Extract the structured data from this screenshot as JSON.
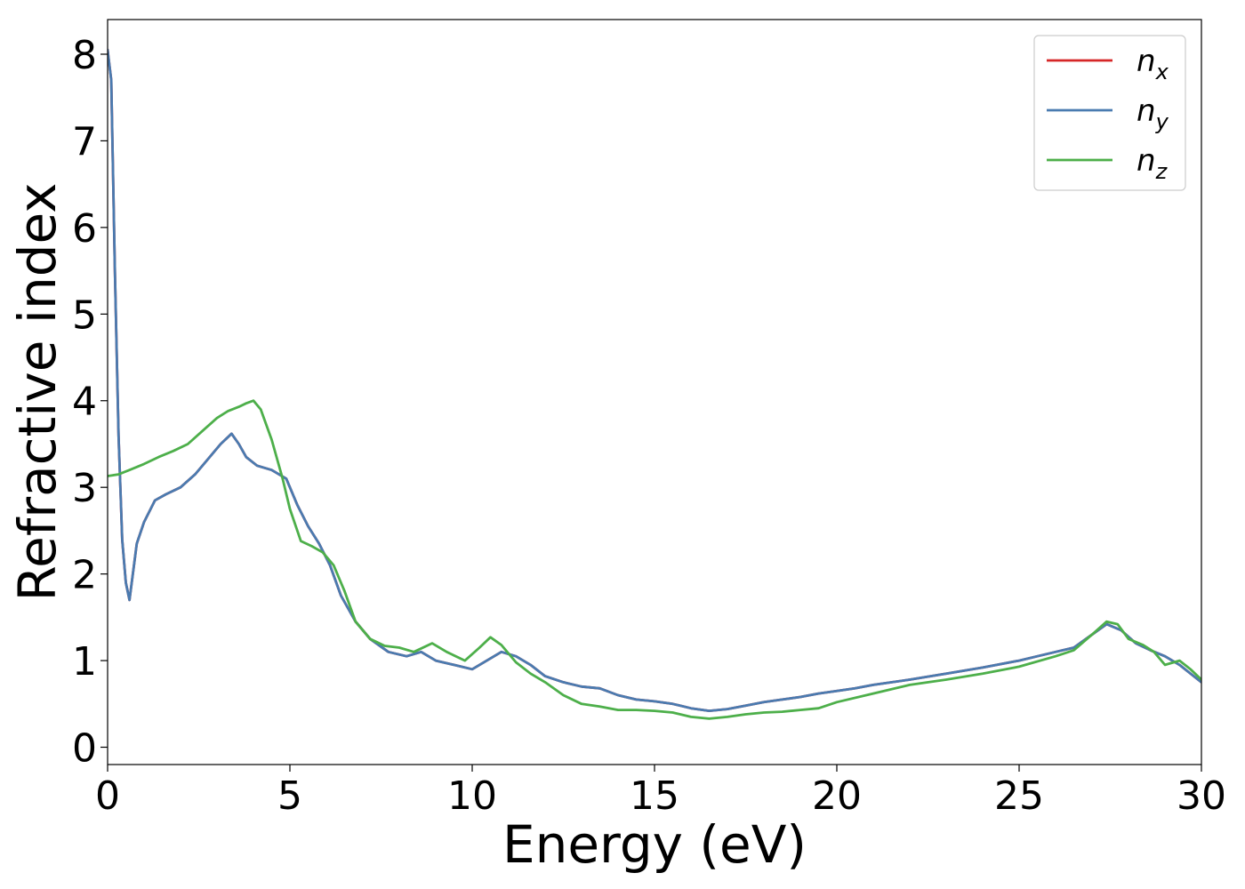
{
  "chart_data": {
    "type": "line",
    "title": "",
    "xlabel": "Energy (eV)",
    "ylabel": "Refractive index",
    "xlim": [
      0,
      30
    ],
    "ylim": [
      -0.2,
      8.4
    ],
    "xticks": [
      0,
      5,
      10,
      15,
      20,
      25,
      30
    ],
    "yticks": [
      0,
      1,
      2,
      3,
      4,
      5,
      6,
      7,
      8
    ],
    "grid": false,
    "legend_position": "top-right",
    "series": [
      {
        "name": "n_x",
        "label_main": "n",
        "label_sub": "x",
        "color": "#d62728",
        "x": [
          0,
          0.1,
          0.2,
          0.3,
          0.4,
          0.5,
          0.6,
          0.8,
          1.0,
          1.3,
          1.6,
          2.0,
          2.4,
          2.8,
          3.1,
          3.4,
          3.6,
          3.8,
          4.1,
          4.5,
          4.9,
          5.2,
          5.5,
          5.8,
          6.1,
          6.4,
          6.8,
          7.2,
          7.7,
          8.2,
          8.6,
          9.0,
          9.5,
          10.0,
          10.4,
          10.8,
          11.2,
          11.6,
          12.0,
          12.5,
          13.0,
          13.5,
          14.0,
          14.5,
          15.0,
          15.5,
          16.0,
          16.5,
          17.0,
          17.5,
          18.0,
          18.5,
          19.0,
          19.5,
          20.0,
          20.5,
          21.0,
          22.0,
          23.0,
          24.0,
          25.0,
          25.5,
          26.0,
          26.5,
          27.0,
          27.4,
          27.8,
          28.2,
          28.6,
          29.0,
          29.4,
          29.7,
          30.0
        ],
        "y": [
          8.05,
          7.7,
          5.5,
          3.6,
          2.4,
          1.9,
          1.7,
          2.35,
          2.6,
          2.85,
          2.92,
          3.0,
          3.15,
          3.35,
          3.5,
          3.62,
          3.5,
          3.35,
          3.25,
          3.2,
          3.1,
          2.8,
          2.55,
          2.35,
          2.1,
          1.75,
          1.45,
          1.25,
          1.1,
          1.05,
          1.1,
          1.0,
          0.95,
          0.9,
          1.0,
          1.1,
          1.05,
          0.95,
          0.82,
          0.75,
          0.7,
          0.68,
          0.6,
          0.55,
          0.53,
          0.5,
          0.45,
          0.42,
          0.44,
          0.48,
          0.52,
          0.55,
          0.58,
          0.62,
          0.65,
          0.68,
          0.72,
          0.78,
          0.85,
          0.92,
          1.0,
          1.05,
          1.1,
          1.15,
          1.3,
          1.42,
          1.35,
          1.2,
          1.12,
          1.05,
          0.95,
          0.85,
          0.75
        ]
      },
      {
        "name": "n_y",
        "label_main": "n",
        "label_sub": "y",
        "color": "#4a7bb0",
        "x": [
          0,
          0.1,
          0.2,
          0.3,
          0.4,
          0.5,
          0.6,
          0.8,
          1.0,
          1.3,
          1.6,
          2.0,
          2.4,
          2.8,
          3.1,
          3.4,
          3.6,
          3.8,
          4.1,
          4.5,
          4.9,
          5.2,
          5.5,
          5.8,
          6.1,
          6.4,
          6.8,
          7.2,
          7.7,
          8.2,
          8.6,
          9.0,
          9.5,
          10.0,
          10.4,
          10.8,
          11.2,
          11.6,
          12.0,
          12.5,
          13.0,
          13.5,
          14.0,
          14.5,
          15.0,
          15.5,
          16.0,
          16.5,
          17.0,
          17.5,
          18.0,
          18.5,
          19.0,
          19.5,
          20.0,
          20.5,
          21.0,
          22.0,
          23.0,
          24.0,
          25.0,
          25.5,
          26.0,
          26.5,
          27.0,
          27.4,
          27.8,
          28.2,
          28.6,
          29.0,
          29.4,
          29.7,
          30.0
        ],
        "y": [
          8.05,
          7.7,
          5.5,
          3.6,
          2.4,
          1.9,
          1.7,
          2.35,
          2.6,
          2.85,
          2.92,
          3.0,
          3.15,
          3.35,
          3.5,
          3.62,
          3.5,
          3.35,
          3.25,
          3.2,
          3.1,
          2.8,
          2.55,
          2.35,
          2.1,
          1.75,
          1.45,
          1.25,
          1.1,
          1.05,
          1.1,
          1.0,
          0.95,
          0.9,
          1.0,
          1.1,
          1.05,
          0.95,
          0.82,
          0.75,
          0.7,
          0.68,
          0.6,
          0.55,
          0.53,
          0.5,
          0.45,
          0.42,
          0.44,
          0.48,
          0.52,
          0.55,
          0.58,
          0.62,
          0.65,
          0.68,
          0.72,
          0.78,
          0.85,
          0.92,
          1.0,
          1.05,
          1.1,
          1.15,
          1.3,
          1.42,
          1.35,
          1.2,
          1.12,
          1.05,
          0.95,
          0.85,
          0.75
        ]
      },
      {
        "name": "n_z",
        "label_main": "n",
        "label_sub": "z",
        "color": "#4daf4a",
        "x": [
          0,
          0.3,
          0.6,
          1.0,
          1.4,
          1.8,
          2.2,
          2.6,
          3.0,
          3.3,
          3.6,
          3.8,
          4.0,
          4.2,
          4.5,
          4.8,
          5.0,
          5.3,
          5.6,
          5.9,
          6.2,
          6.5,
          6.8,
          7.2,
          7.6,
          8.0,
          8.4,
          8.9,
          9.3,
          9.8,
          10.2,
          10.5,
          10.8,
          11.2,
          11.6,
          12.0,
          12.5,
          13.0,
          13.5,
          14.0,
          14.5,
          15.0,
          15.5,
          16.0,
          16.5,
          17.0,
          17.5,
          18.0,
          18.5,
          19.0,
          19.5,
          20.0,
          21.0,
          22.0,
          23.0,
          24.0,
          25.0,
          26.0,
          26.5,
          27.0,
          27.4,
          27.7,
          28.0,
          28.4,
          28.7,
          29.0,
          29.4,
          29.7,
          30.0
        ],
        "y": [
          3.13,
          3.15,
          3.2,
          3.27,
          3.35,
          3.42,
          3.5,
          3.65,
          3.8,
          3.88,
          3.93,
          3.97,
          4.0,
          3.9,
          3.55,
          3.1,
          2.75,
          2.38,
          2.32,
          2.25,
          2.1,
          1.8,
          1.45,
          1.25,
          1.17,
          1.15,
          1.1,
          1.2,
          1.1,
          1.0,
          1.15,
          1.27,
          1.18,
          0.98,
          0.85,
          0.75,
          0.6,
          0.5,
          0.47,
          0.43,
          0.43,
          0.42,
          0.4,
          0.35,
          0.33,
          0.35,
          0.38,
          0.4,
          0.41,
          0.43,
          0.45,
          0.52,
          0.62,
          0.72,
          0.78,
          0.85,
          0.93,
          1.05,
          1.12,
          1.3,
          1.45,
          1.42,
          1.25,
          1.18,
          1.1,
          0.95,
          1.0,
          0.9,
          0.78
        ]
      }
    ]
  }
}
